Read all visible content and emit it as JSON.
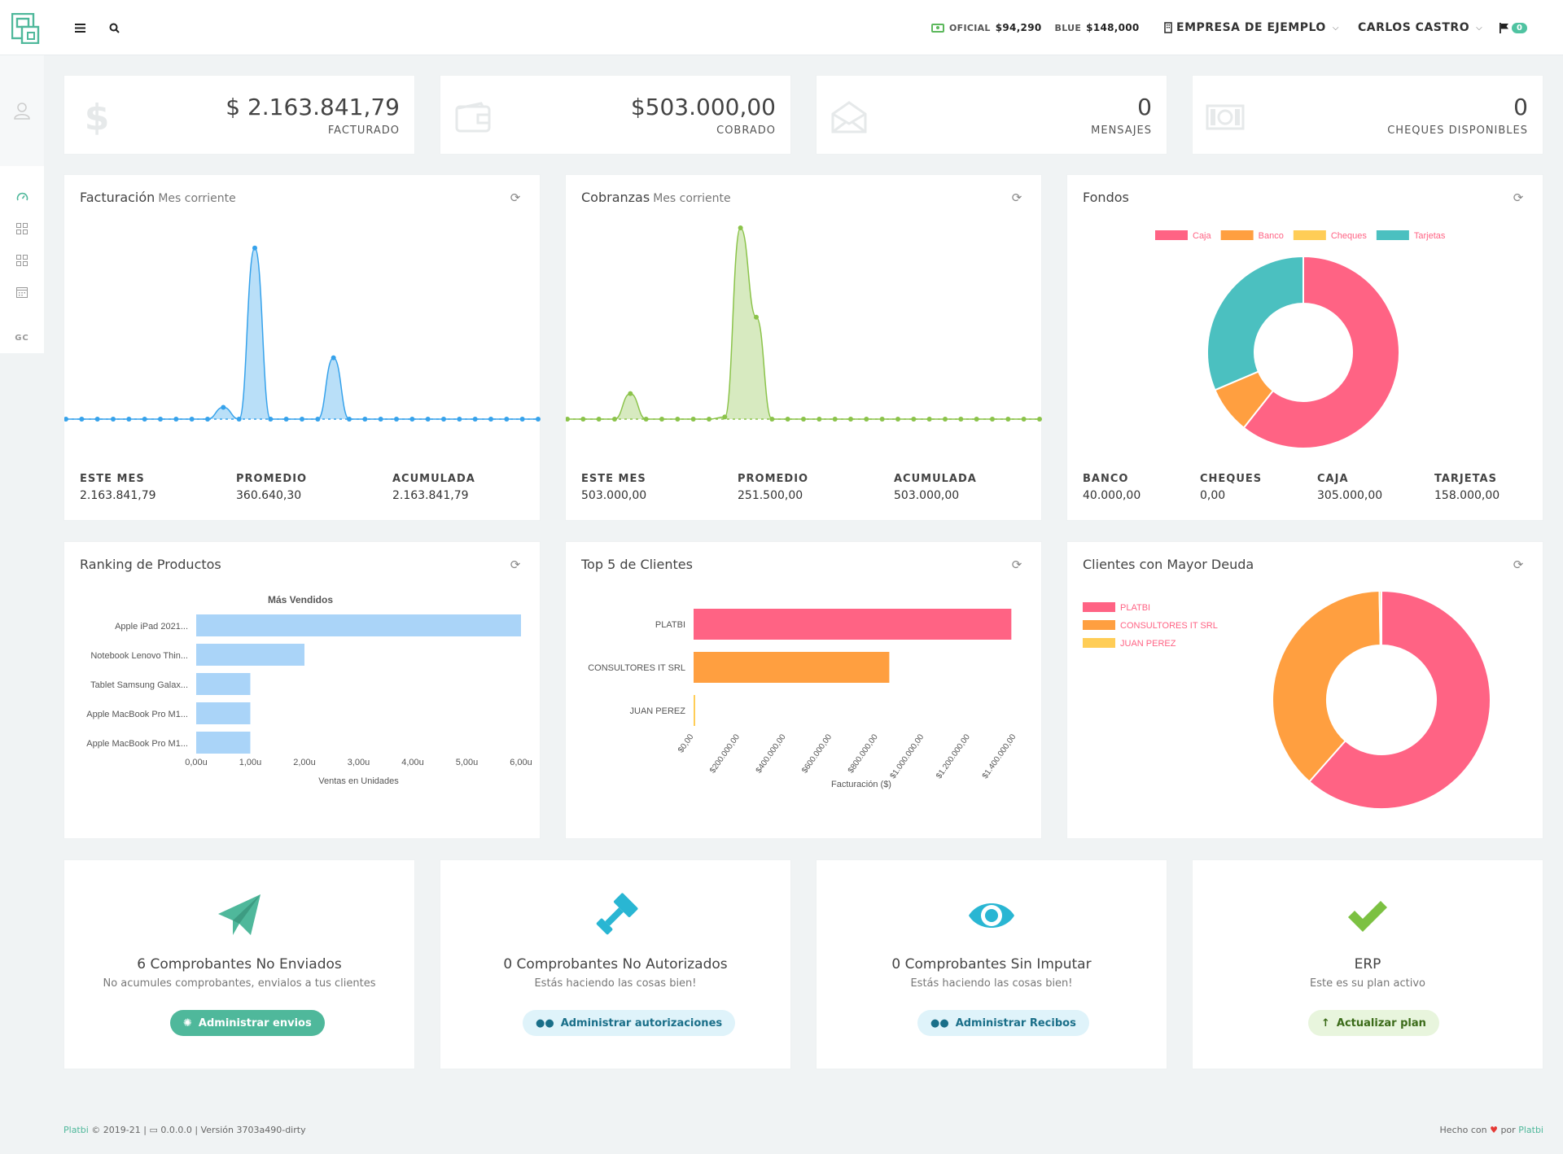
{
  "topbar": {
    "oficial_label": "OFICIAL",
    "oficial_value": "$94,290",
    "blue_label": "BLUE",
    "blue_value": "$148,000",
    "company": "EMPRESA DE EJEMPLO",
    "user": "CARLOS CASTRO",
    "flag_count": "0"
  },
  "sidebar": {
    "gc_label": "GC"
  },
  "stats": [
    {
      "value": "$ 2.163.841,79",
      "label": "FACTURADO"
    },
    {
      "value": "$503.000,00",
      "label": "COBRADO"
    },
    {
      "value": "0",
      "label": "MENSAJES"
    },
    {
      "value": "0",
      "label": "CHEQUES DISPONIBLES"
    }
  ],
  "facturacion": {
    "title": "Facturación",
    "subtitle": "Mes corriente",
    "kpis": [
      {
        "label": "ESTE MES",
        "value": "2.163.841,79"
      },
      {
        "label": "PROMEDIO",
        "value": "360.640,30"
      },
      {
        "label": "ACUMULADA",
        "value": "2.163.841,79"
      }
    ]
  },
  "cobranzas": {
    "title": "Cobranzas",
    "subtitle": "Mes corriente",
    "kpis": [
      {
        "label": "ESTE MES",
        "value": "503.000,00"
      },
      {
        "label": "PROMEDIO",
        "value": "251.500,00"
      },
      {
        "label": "ACUMULADA",
        "value": "503.000,00"
      }
    ]
  },
  "fondos": {
    "title": "Fondos",
    "kpis": [
      {
        "label": "BANCO",
        "value": "40.000,00"
      },
      {
        "label": "CHEQUES",
        "value": "0,00"
      },
      {
        "label": "CAJA",
        "value": "305.000,00"
      },
      {
        "label": "TARJETAS",
        "value": "158.000,00"
      }
    ]
  },
  "ranking": {
    "title": "Ranking de Productos"
  },
  "top5": {
    "title": "Top 5 de Clientes"
  },
  "deuda": {
    "title": "Clientes con Mayor Deuda"
  },
  "colors": {
    "accent": "#4fb89b",
    "blue_series": "#36a2eb",
    "green_series": "#8bc34a",
    "pink": "#ff6384",
    "orange": "#ff9f40",
    "yellow": "#ffcd56",
    "teal": "#4bc0c0",
    "light_blue": "#aad4f8"
  },
  "chart_data": [
    {
      "type": "area",
      "name": "facturacion",
      "x": [
        1,
        2,
        3,
        4,
        5,
        6,
        7,
        8,
        9,
        10,
        11,
        12,
        13,
        14,
        15,
        16,
        17,
        18,
        19,
        20,
        21,
        22,
        23,
        24,
        25,
        26,
        27,
        28,
        29,
        30,
        31
      ],
      "values": [
        0,
        0,
        0,
        0,
        0,
        0,
        0,
        0,
        0,
        0,
        100,
        0,
        1450,
        0,
        0,
        0,
        0,
        520,
        0,
        0,
        0,
        0,
        0,
        0,
        0,
        0,
        0,
        0,
        0,
        0,
        0
      ],
      "ylim": [
        0,
        1600
      ]
    },
    {
      "type": "area",
      "name": "cobranzas",
      "x": [
        1,
        2,
        3,
        4,
        5,
        6,
        7,
        8,
        9,
        10,
        11,
        12,
        13,
        14,
        15,
        16,
        17,
        18,
        19,
        20,
        21,
        22,
        23,
        24,
        25,
        26,
        27,
        28,
        29,
        30,
        31
      ],
      "values": [
        0,
        0,
        0,
        0,
        12,
        0,
        0,
        0,
        0,
        0,
        1,
        90,
        48,
        0,
        0,
        0,
        0,
        0,
        0,
        0,
        0,
        0,
        0,
        0,
        0,
        0,
        0,
        0,
        0,
        0,
        0
      ],
      "ylim": [
        0,
        95
      ]
    },
    {
      "type": "pie",
      "name": "fondos",
      "categories": [
        "Caja",
        "Banco",
        "Cheques",
        "Tarjetas"
      ],
      "values": [
        305000,
        40000,
        0,
        158000
      ]
    },
    {
      "type": "bar",
      "name": "ranking",
      "title": "Más Vendidos",
      "categories": [
        "Apple iPad 2021...",
        "Notebook Lenovo Thin...",
        "Tablet Samsung Galax...",
        "Apple MacBook Pro M1...",
        "Apple MacBook Pro M1..."
      ],
      "values": [
        6,
        2,
        1,
        1,
        1
      ],
      "xlabel": "Ventas en Unidades",
      "ticks": [
        "0,00u",
        "1,00u",
        "2,00u",
        "3,00u",
        "4,00u",
        "5,00u",
        "6,00u"
      ],
      "xlim": [
        0,
        6
      ]
    },
    {
      "type": "bar",
      "name": "top5",
      "categories": [
        "PLATBI",
        "CONSULTORES IT SRL",
        "JUAN PEREZ"
      ],
      "values": [
        1380000,
        850000,
        5000
      ],
      "xlabel": "Facturación ($)",
      "ticks": [
        "$0,00",
        "$200.000,00",
        "$400.000,00",
        "$600.000,00",
        "$800.000,00",
        "$1.000.000,00",
        "$1.200.000,00",
        "$1.400.000,00"
      ],
      "xlim": [
        0,
        1400000
      ]
    },
    {
      "type": "pie",
      "name": "deuda",
      "categories": [
        "PLATBI",
        "CONSULTORES IT SRL",
        "JUAN PEREZ"
      ],
      "values": [
        61.5,
        38.2,
        0.3
      ]
    }
  ],
  "actions": [
    {
      "title": "6 Comprobantes No Enviados",
      "subtitle": "No acumules comprobantes, envialos a tus clientes",
      "button": "Administrar envios"
    },
    {
      "title": "0 Comprobantes No Autorizados",
      "subtitle": "Estás haciendo las cosas bien!",
      "button": "Administrar autorizaciones"
    },
    {
      "title": "0 Comprobantes Sin Imputar",
      "subtitle": "Estás haciendo las cosas bien!",
      "button": "Administrar Recibos"
    },
    {
      "title": "ERP",
      "subtitle": "Este es su plan activo",
      "button": "Actualizar plan"
    }
  ],
  "footer": {
    "brand": "Platbi",
    "copy": "© 2019-21 |",
    "version": "0.0.0.0 | Versión 3703a490-dirty",
    "made": "Hecho con",
    "by": "por",
    "by_brand": "Platbi"
  }
}
